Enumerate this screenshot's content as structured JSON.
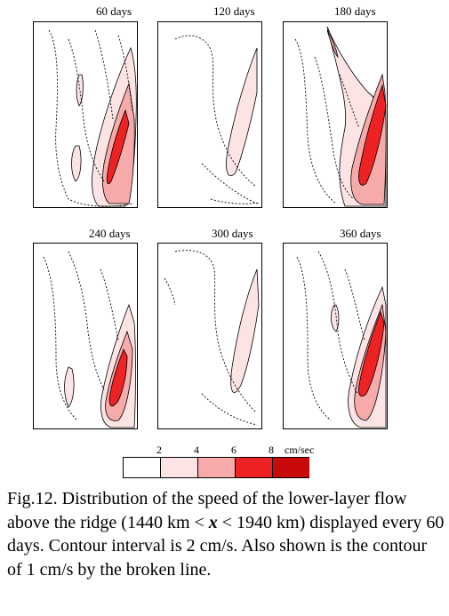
{
  "panels": [
    {
      "label": "60 days"
    },
    {
      "label": "120 days"
    },
    {
      "label": "180 days"
    },
    {
      "label": "240 days"
    },
    {
      "label": "300 days"
    },
    {
      "label": "360 days"
    }
  ],
  "colorbar": {
    "ticks": [
      "2",
      "4",
      "6",
      "8"
    ],
    "unit": "cm/sec",
    "colors": [
      "#ffffff",
      "#fde4e4",
      "#f6aaaa",
      "#ee2222",
      "#c80a0a"
    ]
  },
  "caption": {
    "before": "Fig.12. Distribution of the speed of the lower-layer flow above the ridge (1440 km < ",
    "var": "x",
    "after": " < 1940 km) displayed every 60 days. Contour interval is 2 cm/s. Also shown is the contour of 1 cm/s by the broken line."
  }
}
